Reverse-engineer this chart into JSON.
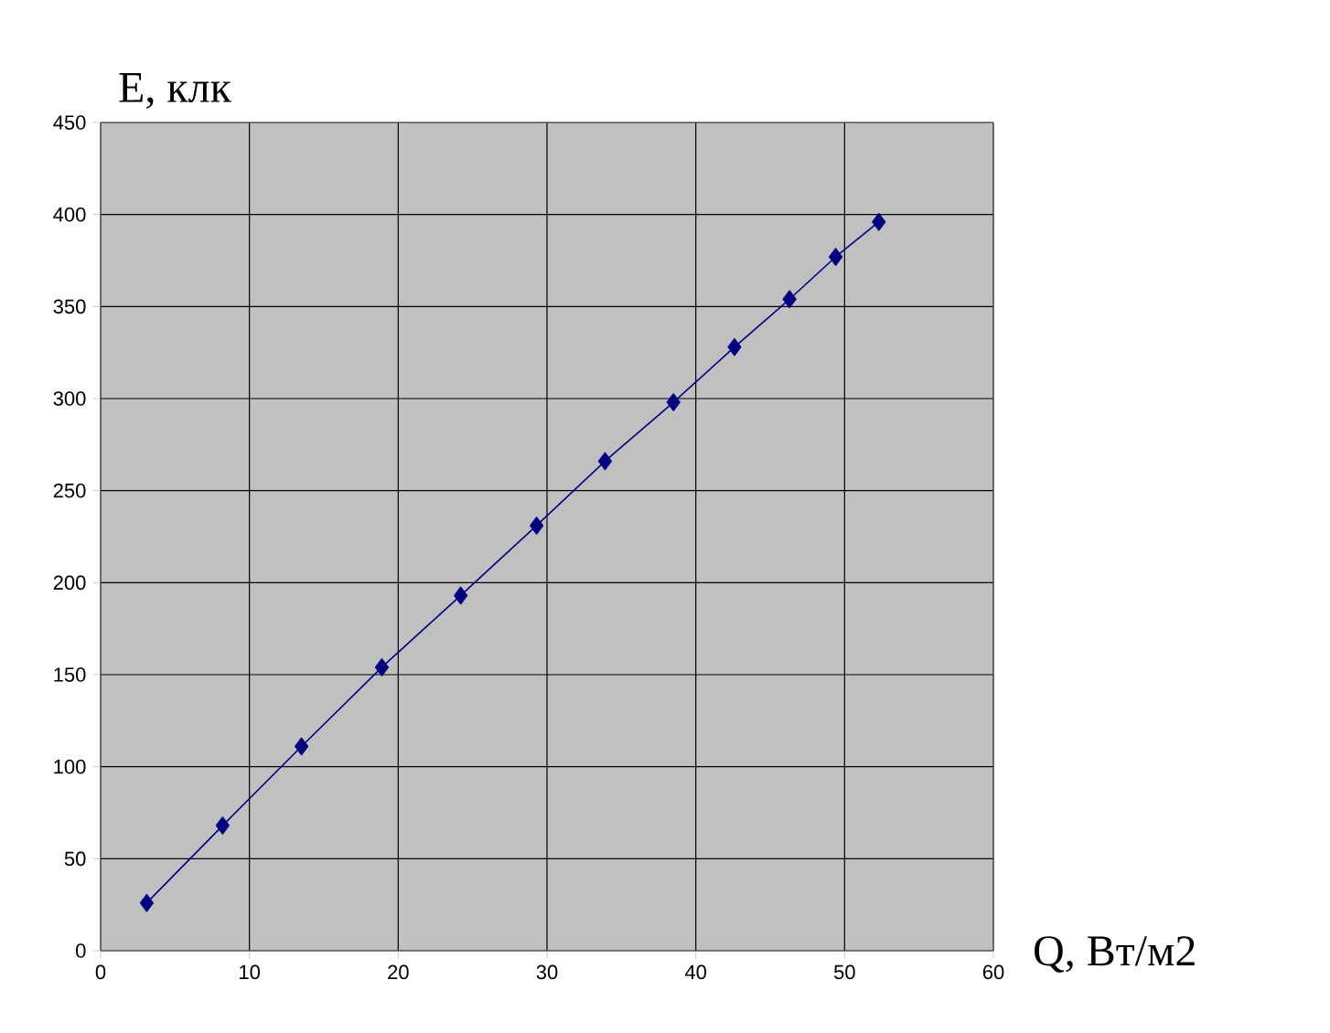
{
  "chart_data": {
    "type": "line",
    "xlabel": "Q, Вт/м2",
    "ylabel": "E, клк",
    "x": [
      3.1,
      8.2,
      13.5,
      18.9,
      24.2,
      29.3,
      33.9,
      38.5,
      42.6,
      46.3,
      49.4,
      52.3
    ],
    "series": [
      {
        "color": "#000080",
        "values": [
          26,
          68,
          111,
          154,
          193,
          231,
          266,
          298,
          328,
          354,
          377,
          396
        ]
      }
    ],
    "xlim": [
      0,
      60
    ],
    "ylim": [
      0,
      450
    ],
    "xticks": [
      0,
      10,
      20,
      30,
      40,
      50,
      60
    ],
    "yticks": [
      0,
      50,
      100,
      150,
      200,
      250,
      300,
      350,
      400,
      450
    ],
    "grid": true,
    "marker": "diamond",
    "line_style": "solid"
  }
}
